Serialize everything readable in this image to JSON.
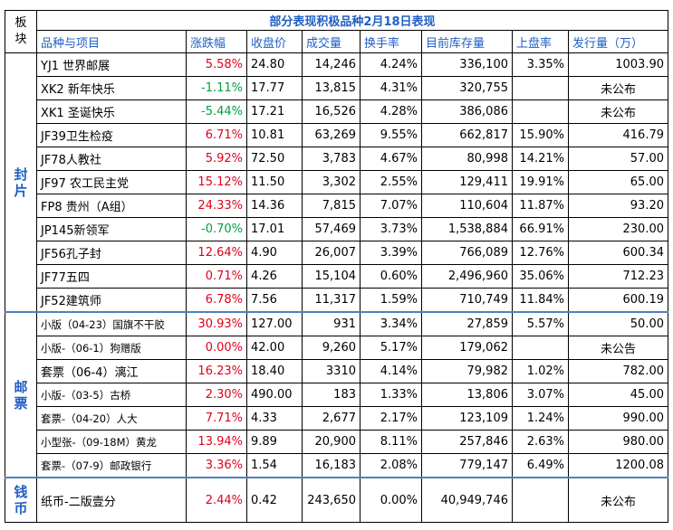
{
  "title": "部分表现积极品种2月18日表现",
  "corner": "板块",
  "headers": [
    "品种与项目",
    "涨跌幅",
    "收盘价",
    "成交量",
    "换手率",
    "目前库存量",
    "上盘率",
    "发行量（万）"
  ],
  "groups": [
    {
      "label": "封片",
      "rows": [
        [
          "YJ1 世界邮展",
          "5.58%",
          "24.80",
          "14,246",
          "4.24%",
          "336,100",
          "3.35%",
          "1003.90"
        ],
        [
          "XK2 新年快乐",
          "-1.11%",
          "17.77",
          "13,815",
          "4.31%",
          "320,755",
          null,
          "未公布"
        ],
        [
          "XK1 圣诞快乐",
          "-5.44%",
          "17.21",
          "16,526",
          "4.28%",
          "386,086",
          null,
          "未公布"
        ],
        [
          "JF39卫生检疫",
          "6.71%",
          "10.81",
          "63,269",
          "9.55%",
          "662,817",
          "15.90%",
          "416.79"
        ],
        [
          "JF78人教社",
          "5.92%",
          "72.50",
          "3,783",
          "4.67%",
          "80,998",
          "14.21%",
          "57.00"
        ],
        [
          "JF97 农工民主党",
          "15.12%",
          "11.50",
          "3,302",
          "2.55%",
          "129,411",
          "19.91%",
          "65.00"
        ],
        [
          "FP8 贵州（A组）",
          "24.33%",
          "14.36",
          "7,815",
          "7.07%",
          "110,604",
          "11.87%",
          "93.20"
        ],
        [
          "JP145新领军",
          "-0.70%",
          "17.01",
          "57,469",
          "3.73%",
          "1,538,884",
          "66.91%",
          "230.00"
        ],
        [
          "JF56孔子封",
          "12.64%",
          "4.90",
          "26,007",
          "3.39%",
          "766,089",
          "12.76%",
          "600.34"
        ],
        [
          "JF77五四",
          "0.71%",
          "4.26",
          "15,104",
          "0.60%",
          "2,496,960",
          "35.06%",
          "712.23"
        ],
        [
          "JF52建筑师",
          "6.78%",
          "7.56",
          "11,317",
          "1.59%",
          "710,749",
          "11.84%",
          "600.19"
        ]
      ]
    },
    {
      "label": "邮票",
      "rows": [
        [
          "小版（04-23）国旗不干胶",
          "30.93%",
          "127.00",
          "931",
          "3.34%",
          "27,859",
          "5.57%",
          "50.00"
        ],
        [
          "小版-（06-1）狗赠版",
          "0.00%",
          "42.00",
          "9,260",
          "5.17%",
          "179,062",
          null,
          "未公告"
        ],
        [
          "套票（06-4）漓江",
          "16.23%",
          "18.40",
          "3310",
          "4.14%",
          "79,982",
          "1.02%",
          "782.00"
        ],
        [
          "小版-（03-5）古桥",
          "2.30%",
          "490.00",
          "183",
          "1.33%",
          "13,806",
          "3.07%",
          "45.00"
        ],
        [
          "套票-（04-20）人大",
          "7.71%",
          "4.33",
          "2,677",
          "2.17%",
          "123,109",
          "1.24%",
          "990.00"
        ],
        [
          "小型张-（09-18M）黄龙",
          "13.94%",
          "9.89",
          "20,900",
          "8.11%",
          "257,846",
          "2.63%",
          "980.00"
        ],
        [
          "套票-（07-9）邮政银行",
          "3.36%",
          "1.54",
          "16,183",
          "2.08%",
          "779,147",
          "6.49%",
          "1200.08"
        ]
      ]
    },
    {
      "label": "钱币",
      "rows": [
        [
          "纸币-二版壹分",
          "2.44%",
          "0.42",
          "243,650",
          "0.00%",
          "40,949,746",
          null,
          "未公布"
        ]
      ]
    }
  ]
}
